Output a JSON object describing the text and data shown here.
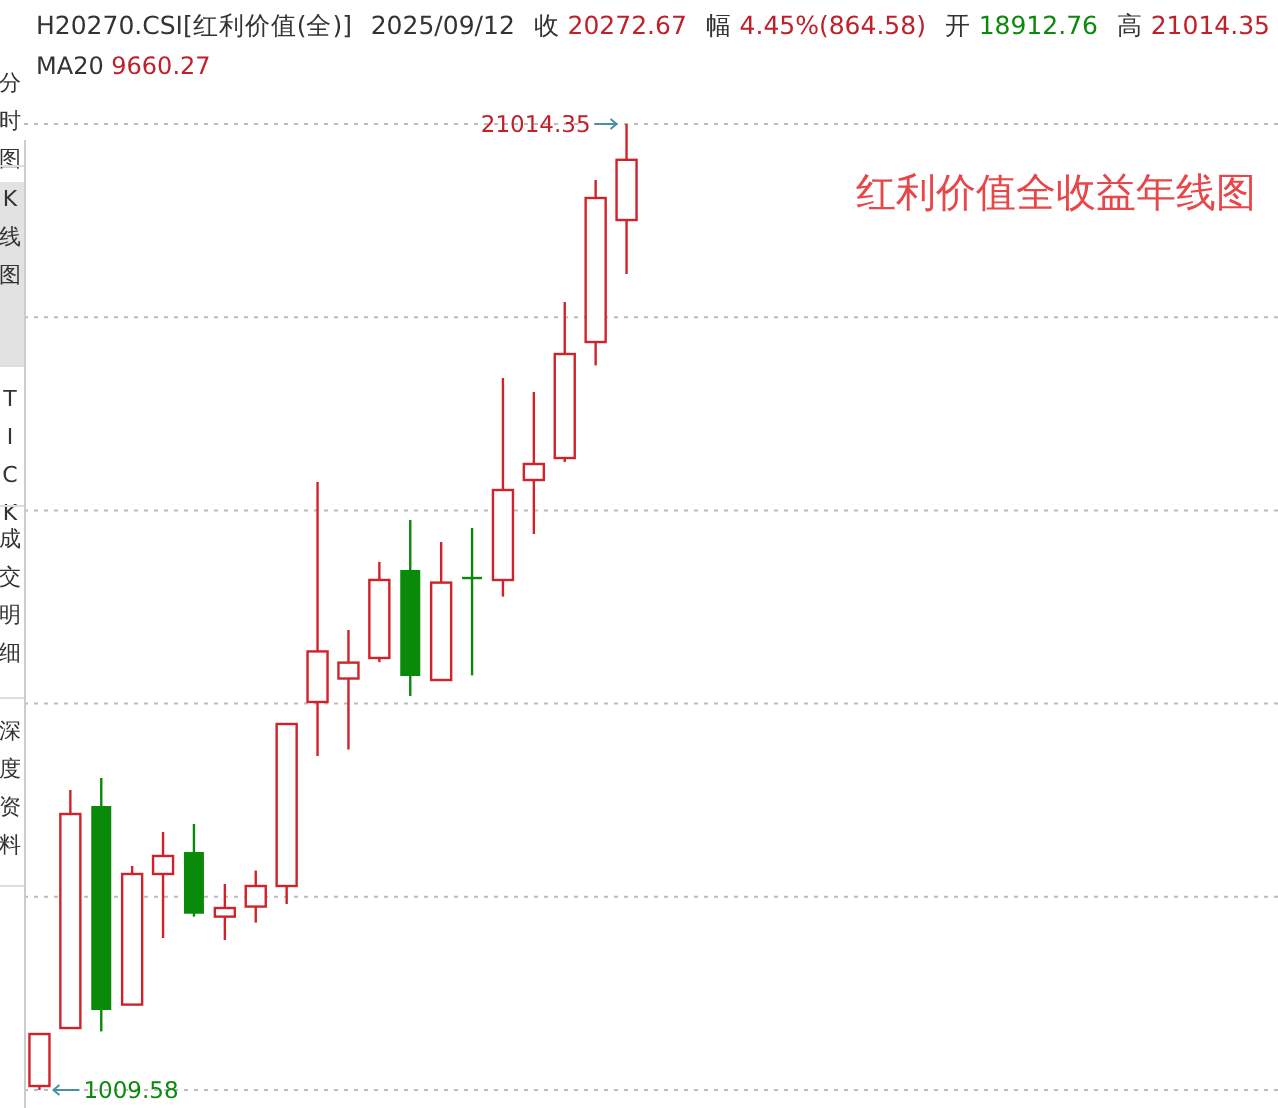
{
  "chart_data": {
    "type": "candlestick",
    "title": "红利价值全收益年线图",
    "categories": [
      null,
      null,
      null,
      null,
      null,
      null,
      null,
      null,
      null,
      null,
      null,
      null,
      null,
      null,
      null,
      null,
      null,
      null,
      null,
      null
    ],
    "ohlc": [
      [
        1092,
        2169,
        1009.58,
        2169
      ],
      [
        2293,
        7222,
        2293,
        6725
      ],
      [
        6891,
        7471,
        2223,
        2666
      ],
      [
        2778,
        5648,
        2778,
        5483
      ],
      [
        5483,
        6352,
        4157,
        5856
      ],
      [
        5938,
        6518,
        4600,
        4660
      ],
      [
        4600,
        5276,
        4116,
        4778
      ],
      [
        4808,
        5553,
        4476,
        5234
      ],
      [
        5234,
        8589,
        4861,
        8589
      ],
      [
        9045,
        13600,
        7926,
        10092
      ],
      [
        9531,
        10536,
        8060,
        9860
      ],
      [
        9956,
        11944,
        9870,
        11572
      ],
      [
        11778,
        12814,
        9170,
        9583
      ],
      [
        9500,
        12358,
        9500,
        11517
      ],
      [
        11612,
        12648,
        9596,
        11600
      ],
      [
        11571,
        15754,
        11227,
        13435
      ],
      [
        13642,
        15464,
        12524,
        13973
      ],
      [
        14097,
        17328,
        14015,
        16251
      ],
      [
        16499,
        19855,
        16015,
        19482
      ],
      [
        19026,
        21014.35,
        17908,
        20272.67
      ]
    ],
    "ylim": [
      1009.58,
      21014.35
    ],
    "yticks": [
      {
        "value": 5010.5,
        "label": null
      },
      {
        "value": 9011.5,
        "label": null
      },
      {
        "value": 13012.4,
        "label": null
      },
      {
        "value": 17013.4,
        "label": null
      }
    ],
    "grid": "y",
    "annotations": [
      "H20270.CSI[红利价值(全)]",
      "2025/09/12",
      "收 20272.67",
      "幅 4.45%(864.58)",
      "开 18912.76",
      "高 21014.35",
      "MA20 9660.27",
      "分时图",
      "K线图",
      "TICK",
      "成交明细",
      "深度资料",
      "21014.35",
      "1009.58"
    ]
  }
}
